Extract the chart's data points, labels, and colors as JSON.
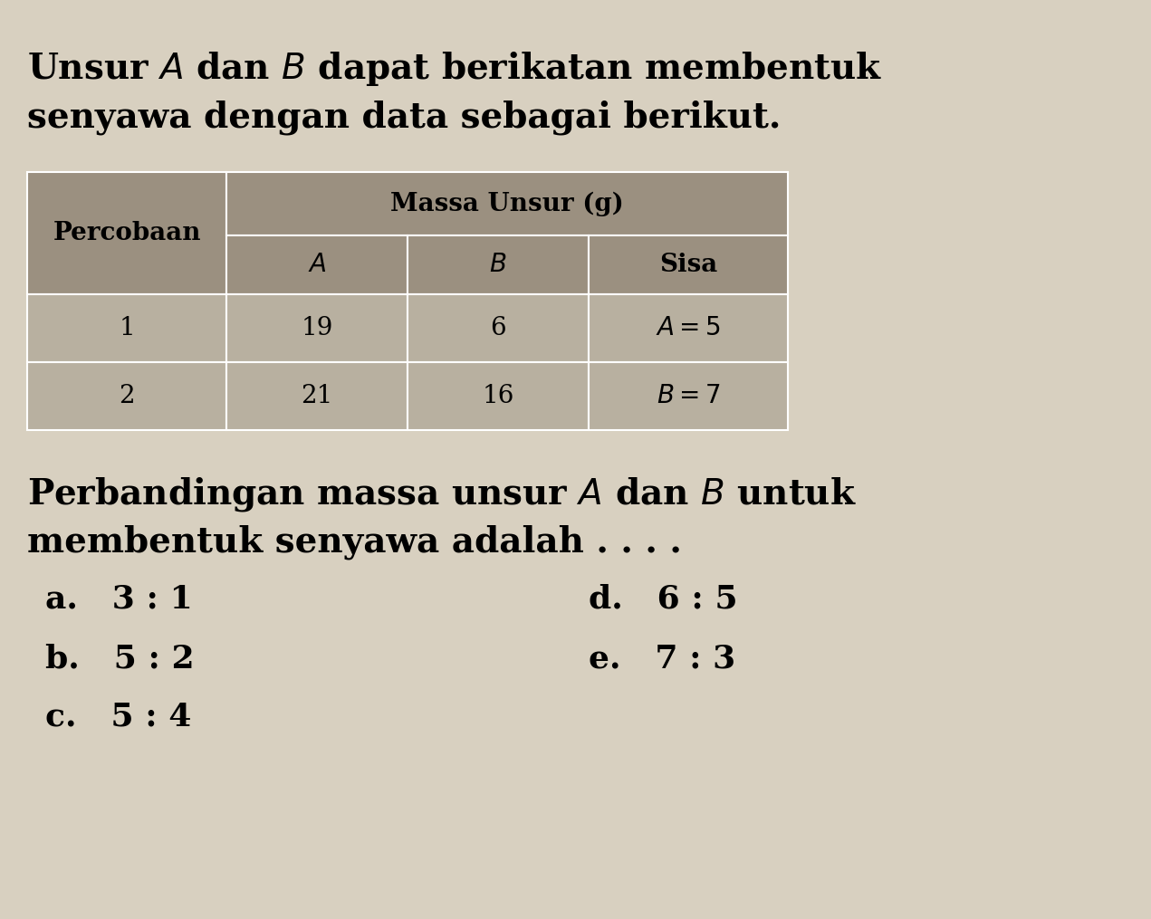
{
  "title_line1": "Unsur $A$ dan $B$ dapat berikatan membentuk",
  "title_line2": "senyawa dengan data sebagai berikut.",
  "table_header_col0": "Percobaan",
  "table_header_span": "Massa Unsur (g)",
  "table_subheader": [
    "$A$",
    "$B$",
    "Sisa"
  ],
  "table_rows": [
    [
      "1",
      "19",
      "6",
      "$A = 5$"
    ],
    [
      "2",
      "21",
      "16",
      "$B = 7$"
    ]
  ],
  "question_line1": "Perbandingan massa unsur $A$ dan $B$ untuk",
  "question_line2": "membentuk senyawa adalah . . . .",
  "choices_left": [
    "a.   3 : 1",
    "b.   5 : 2",
    "c.   5 : 4"
  ],
  "choices_right": [
    "d.   6 : 5",
    "e.   7 : 3"
  ],
  "bg_color": "#c8c0b0",
  "header_bg": "#a09880",
  "cell_bg_light": "#c8c0b0",
  "table_border": "#ffffff",
  "text_color": "#000000",
  "page_bg": "#e8e0d0"
}
